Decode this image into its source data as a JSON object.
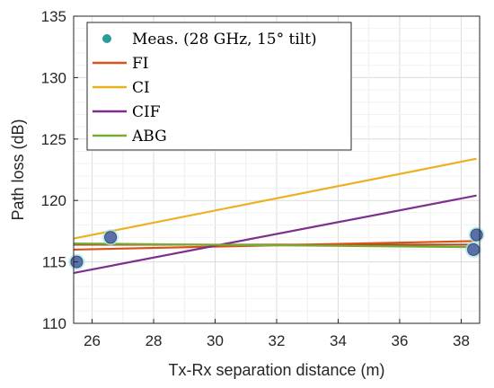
{
  "chart_data": {
    "type": "line",
    "xlabel": "Tx-Rx separation distance (m)",
    "ylabel": "Path loss (dB)",
    "xlim": [
      25.4,
      38.6
    ],
    "ylim": [
      110,
      135
    ],
    "xticks": [
      "26",
      "28",
      "30",
      "32",
      "34",
      "36",
      "38"
    ],
    "yticks": [
      "110",
      "115",
      "120",
      "125",
      "130",
      "135"
    ],
    "grid": true,
    "legend_position": "top-left",
    "scatter": {
      "name": "Meas. (28 GHz, 15° tilt)",
      "color": "#2a9d9b",
      "points": [
        {
          "x": 25.5,
          "y": 115.0
        },
        {
          "x": 26.6,
          "y": 117.0
        },
        {
          "x": 38.4,
          "y": 116.0
        },
        {
          "x": 38.5,
          "y": 117.2
        }
      ]
    },
    "series": [
      {
        "name": "FI",
        "color": "#d95319",
        "x": [
          25.4,
          38.5
        ],
        "y": [
          116.0,
          116.7
        ]
      },
      {
        "name": "CI",
        "color": "#edb120",
        "x": [
          25.4,
          38.5
        ],
        "y": [
          116.9,
          123.4
        ]
      },
      {
        "name": "CIF",
        "color": "#7e2f8e",
        "x": [
          25.4,
          38.5
        ],
        "y": [
          114.1,
          120.4
        ]
      },
      {
        "name": "ABG",
        "color": "#77ac30",
        "x": [
          25.4,
          38.5
        ],
        "y": [
          116.5,
          116.2
        ]
      }
    ],
    "extra_line": {
      "color": "#a0522d",
      "x": [
        25.4,
        38.5
      ],
      "y": [
        116.4,
        116.4
      ]
    }
  }
}
